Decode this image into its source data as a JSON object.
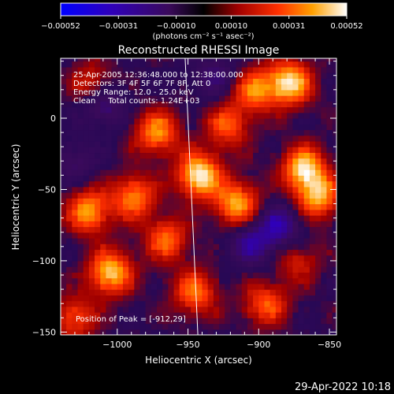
{
  "chart_data": {
    "type": "heatmap",
    "title": "Reconstructed RHESSI Image",
    "xlabel": "Heliocentric X (arcsec)",
    "ylabel": "Heliocentric Y (arcsec)",
    "xlim": [
      -1040,
      -845
    ],
    "ylim": [
      -152,
      42
    ],
    "x_ticks": [
      -1000,
      -950,
      -900,
      -850
    ],
    "x_tick_labels": [
      "−1000",
      "−950",
      "−900",
      "−850"
    ],
    "y_ticks": [
      0,
      -50,
      -100,
      -150
    ],
    "y_tick_labels": [
      "0",
      "−50",
      "−100",
      "−150"
    ],
    "colorbar": {
      "ticks": [
        -0.00052,
        -0.00031,
        -0.0001,
        0.0001,
        0.00031,
        0.00052
      ],
      "tick_labels": [
        "−0.00052",
        "−0.00031",
        "−0.00010",
        "0.00010",
        "0.00031",
        "0.00052"
      ],
      "label": "(photons cm⁻² s⁻¹ asec⁻²)",
      "range": [
        -0.00052,
        0.00052
      ]
    },
    "annotations": [
      "25-Apr-2005 12:36:48.000 to 12:38:00.000",
      "Detectors: 3F 4F 5F 6F 7F 8F, Att 0",
      "Energy Range: 12.0 - 25.0 keV",
      "Clean     Total counts: 1.24E+03"
    ],
    "peak_label": "Position of Peak = [-912,29]",
    "peak_position": [
      -912,
      29
    ],
    "limb_line": [
      [
        -952,
        42
      ],
      [
        -943,
        -152
      ]
    ],
    "sources": [
      {
        "x": -942,
        "y": -40,
        "v": 0.00052
      },
      {
        "x": -1005,
        "y": -108,
        "v": 0.00046
      },
      {
        "x": -1020,
        "y": -65,
        "v": 0.0004
      },
      {
        "x": -972,
        "y": -10,
        "v": 0.00038
      },
      {
        "x": -988,
        "y": -55,
        "v": 0.00036
      },
      {
        "x": -915,
        "y": -60,
        "v": 0.00042
      },
      {
        "x": -903,
        "y": 20,
        "v": 0.00035
      },
      {
        "x": -878,
        "y": 25,
        "v": 0.00048
      },
      {
        "x": -868,
        "y": -35,
        "v": 0.00046
      },
      {
        "x": -858,
        "y": -55,
        "v": 0.0004
      },
      {
        "x": -922,
        "y": -5,
        "v": 0.0003
      },
      {
        "x": -945,
        "y": -122,
        "v": 0.00034
      },
      {
        "x": -895,
        "y": -130,
        "v": 0.0003
      },
      {
        "x": -1030,
        "y": -140,
        "v": 0.00028
      },
      {
        "x": -965,
        "y": -85,
        "v": 0.00032
      },
      {
        "x": -1018,
        "y": 25,
        "v": 0.00022
      },
      {
        "x": -872,
        "y": -100,
        "v": 0.0002
      }
    ],
    "negative_regions": [
      {
        "x": -1010,
        "y": 10,
        "v": -0.00022
      },
      {
        "x": -930,
        "y": 30,
        "v": -0.00018
      },
      {
        "x": -885,
        "y": -75,
        "v": -0.00028
      },
      {
        "x": -905,
        "y": -88,
        "v": -0.00024
      },
      {
        "x": -1030,
        "y": -30,
        "v": -0.00015
      }
    ]
  },
  "footer": {
    "timestamp": "29-Apr-2022 10:18"
  }
}
